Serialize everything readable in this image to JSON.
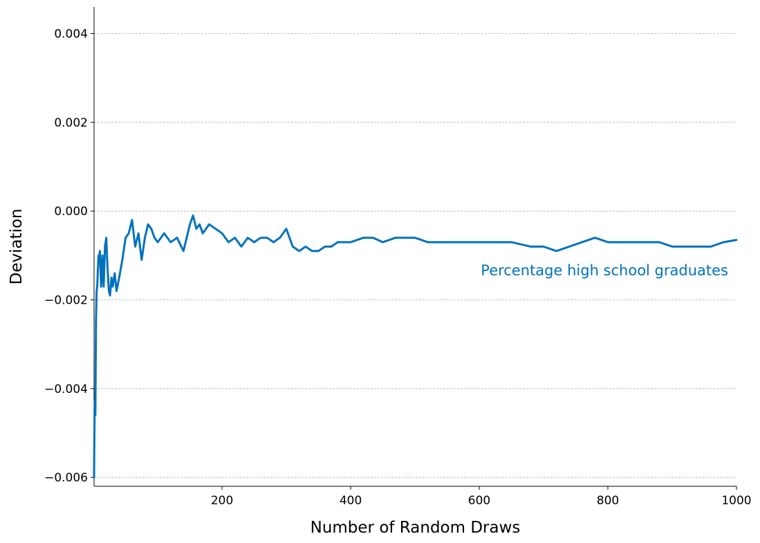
{
  "chart_data": {
    "type": "line",
    "title": "",
    "xlabel": "Number of Random Draws",
    "ylabel": "Deviation",
    "xlim": [
      1,
      1000
    ],
    "ylim": [
      -0.0062,
      0.0046
    ],
    "x_ticks": [
      200,
      400,
      600,
      800,
      1000
    ],
    "x_tick_labels": [
      "200",
      "400",
      "600",
      "800",
      "1000"
    ],
    "y_ticks": [
      0.004,
      0.002,
      0.0,
      -0.002,
      -0.004,
      -0.006
    ],
    "y_tick_labels": [
      "0.004",
      "0.002",
      "0.000",
      "−0.002",
      "−0.004",
      "−0.006"
    ],
    "grid": "horizontal dashed",
    "annotation": "Percentage high school graduates",
    "line_color": "#0072BD",
    "series": [
      {
        "x": [
          1,
          2,
          3,
          4,
          5,
          6,
          7,
          8,
          9,
          10,
          12,
          14,
          16,
          18,
          20,
          22,
          24,
          26,
          28,
          30,
          33,
          36,
          40,
          45,
          50,
          55,
          60,
          65,
          70,
          75,
          80,
          85,
          90,
          95,
          100,
          110,
          120,
          130,
          140,
          150,
          155,
          160,
          165,
          170,
          180,
          190,
          200,
          210,
          220,
          230,
          240,
          250,
          260,
          270,
          280,
          290,
          300,
          310,
          320,
          330,
          340,
          350,
          360,
          370,
          380,
          400,
          420,
          435,
          450,
          470,
          500,
          520,
          540,
          560,
          580,
          600,
          620,
          650,
          680,
          700,
          720,
          740,
          760,
          780,
          800,
          820,
          840,
          860,
          880,
          900,
          920,
          940,
          960,
          980,
          1000
        ],
        "values": [
          -0.006,
          -0.0043,
          -0.0046,
          -0.0025,
          -0.0018,
          -0.0017,
          -0.0013,
          -0.001,
          -0.0011,
          -0.0009,
          -0.0017,
          -0.001,
          -0.0017,
          -0.0008,
          -0.0006,
          -0.0013,
          -0.0018,
          -0.0019,
          -0.0015,
          -0.0017,
          -0.0014,
          -0.0018,
          -0.0015,
          -0.0011,
          -0.0006,
          -0.0005,
          -0.0002,
          -0.0008,
          -0.0005,
          -0.0011,
          -0.0006,
          -0.0003,
          -0.0004,
          -0.0006,
          -0.0007,
          -0.0005,
          -0.0007,
          -0.0006,
          -0.0009,
          -0.0003,
          -0.0001,
          -0.0004,
          -0.0003,
          -0.0005,
          -0.0003,
          -0.0004,
          -0.0005,
          -0.0007,
          -0.0006,
          -0.0008,
          -0.0006,
          -0.0007,
          -0.0006,
          -0.0006,
          -0.0007,
          -0.0006,
          -0.0004,
          -0.0008,
          -0.0009,
          -0.0008,
          -0.0009,
          -0.0009,
          -0.0008,
          -0.0008,
          -0.0007,
          -0.0007,
          -0.0006,
          -0.0006,
          -0.0007,
          -0.0006,
          -0.0006,
          -0.0007,
          -0.0007,
          -0.0007,
          -0.0007,
          -0.0007,
          -0.0007,
          -0.0007,
          -0.0008,
          -0.0008,
          -0.0009,
          -0.0008,
          -0.0007,
          -0.0006,
          -0.0007,
          -0.0007,
          -0.0007,
          -0.0007,
          -0.0007,
          -0.0008,
          -0.0008,
          -0.0008,
          -0.0008,
          -0.0007,
          -0.00065
        ]
      }
    ]
  }
}
